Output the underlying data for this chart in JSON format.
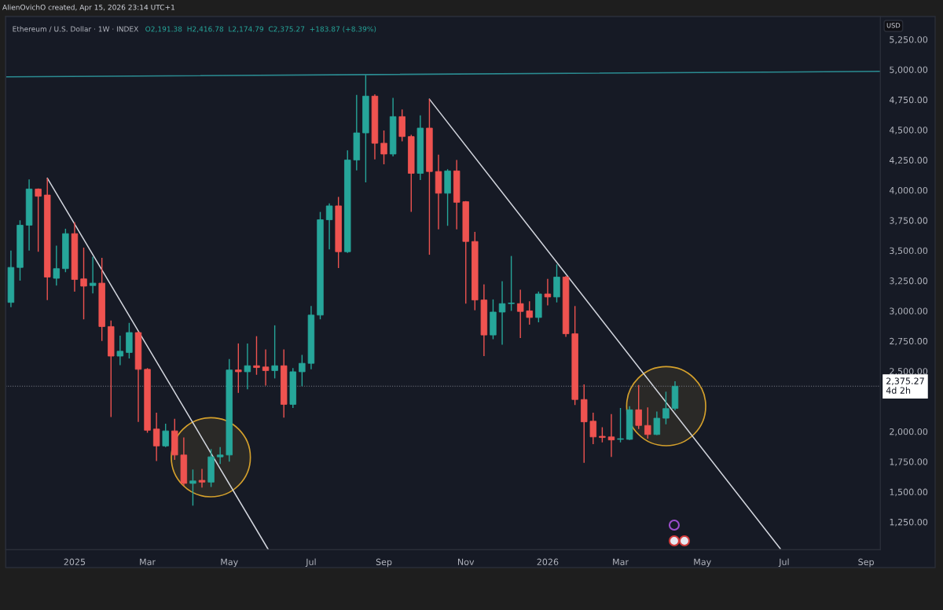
{
  "chart_data": {
    "type": "candlestick",
    "title": "Ethereum / U.S. Dollar · 1W · INDEX",
    "subtitle": "O2,191.38  H2,416.78  L2,174.79  C2,375.27  +183.87 (+8.39%)",
    "annotations": [
      "AlienOvichO created, Apr 15, 2026 23:14 UTC+1",
      "USD"
    ],
    "x": [
      "2024-11-18",
      "2024-11-25",
      "2024-12-02",
      "2024-12-09",
      "2024-12-16",
      "2024-12-23",
      "2024-12-30",
      "2025-01-06",
      "2025-01-13",
      "2025-01-20",
      "2025-01-27",
      "2025-02-03",
      "2025-02-10",
      "2025-02-17",
      "2025-02-24",
      "2025-03-03",
      "2025-03-10",
      "2025-03-17",
      "2025-03-24",
      "2025-03-31",
      "2025-04-07",
      "2025-04-14",
      "2025-04-21",
      "2025-04-28",
      "2025-05-05",
      "2025-05-12",
      "2025-05-19",
      "2025-05-26",
      "2025-06-02",
      "2025-06-09",
      "2025-06-16",
      "2025-06-23",
      "2025-06-30",
      "2025-07-07",
      "2025-07-14",
      "2025-07-21",
      "2025-07-28",
      "2025-08-04",
      "2025-08-11",
      "2025-08-18",
      "2025-08-25",
      "2025-09-01",
      "2025-09-08",
      "2025-09-15",
      "2025-09-22",
      "2025-09-29",
      "2025-10-06",
      "2025-10-13",
      "2025-10-20",
      "2025-10-27",
      "2025-11-03",
      "2025-11-10",
      "2025-11-17",
      "2025-11-24",
      "2025-12-01",
      "2025-12-08",
      "2025-12-15",
      "2025-12-22",
      "2025-12-29",
      "2026-01-05",
      "2026-01-12",
      "2026-01-19",
      "2026-01-26",
      "2026-02-02",
      "2026-02-09",
      "2026-02-16",
      "2026-02-23",
      "2026-03-02",
      "2026-03-09",
      "2026-03-16",
      "2026-03-23",
      "2026-03-30",
      "2026-04-06",
      "2026-04-13"
    ],
    "ohlc": [
      [
        3070,
        3500,
        3030,
        3360
      ],
      [
        3360,
        3750,
        3250,
        3710
      ],
      [
        3710,
        4090,
        3500,
        4010
      ],
      [
        4010,
        4015,
        3490,
        3950
      ],
      [
        3960,
        4100,
        3090,
        3280
      ],
      [
        3270,
        3540,
        3210,
        3350
      ],
      [
        3350,
        3680,
        3320,
        3640
      ],
      [
        3640,
        3735,
        3160,
        3260
      ],
      [
        3265,
        3525,
        2930,
        3205
      ],
      [
        3210,
        3450,
        3145,
        3230
      ],
      [
        3230,
        3440,
        2750,
        2870
      ],
      [
        2870,
        2920,
        2120,
        2625
      ],
      [
        2625,
        2795,
        2550,
        2665
      ],
      [
        2655,
        2900,
        2605,
        2820
      ],
      [
        2820,
        2830,
        2080,
        2515
      ],
      [
        2515,
        2525,
        1990,
        2010
      ],
      [
        2020,
        2155,
        1755,
        1880
      ],
      [
        1880,
        2065,
        1870,
        2005
      ],
      [
        2005,
        2105,
        1765,
        1805
      ],
      [
        1805,
        1950,
        1550,
        1570
      ],
      [
        1570,
        1685,
        1385,
        1590
      ],
      [
        1595,
        1690,
        1535,
        1580
      ],
      [
        1580,
        1855,
        1540,
        1790
      ],
      [
        1790,
        1870,
        1730,
        1805
      ],
      [
        1805,
        2600,
        1750,
        2510
      ],
      [
        2510,
        2730,
        2320,
        2495
      ],
      [
        2495,
        2730,
        2350,
        2545
      ],
      [
        2545,
        2790,
        2470,
        2530
      ],
      [
        2535,
        2680,
        2380,
        2505
      ],
      [
        2505,
        2880,
        2440,
        2545
      ],
      [
        2545,
        2680,
        2115,
        2225
      ],
      [
        2225,
        2525,
        2195,
        2495
      ],
      [
        2495,
        2635,
        2375,
        2565
      ],
      [
        2565,
        3040,
        2515,
        2965
      ],
      [
        2965,
        3820,
        2930,
        3755
      ],
      [
        3755,
        3890,
        3510,
        3870
      ],
      [
        3870,
        3945,
        3355,
        3490
      ],
      [
        3490,
        4330,
        3480,
        4250
      ],
      [
        4250,
        4790,
        4165,
        4475
      ],
      [
        4475,
        4955,
        4065,
        4780
      ],
      [
        4780,
        4795,
        4255,
        4390
      ],
      [
        4390,
        4495,
        4215,
        4300
      ],
      [
        4300,
        4765,
        4280,
        4610
      ],
      [
        4610,
        4670,
        4405,
        4445
      ],
      [
        4445,
        4460,
        3820,
        4140
      ],
      [
        4140,
        4620,
        4085,
        4515
      ],
      [
        4515,
        4755,
        3465,
        4155
      ],
      [
        4155,
        4295,
        3675,
        3975
      ],
      [
        3975,
        4175,
        3705,
        4160
      ],
      [
        4160,
        4250,
        3675,
        3900
      ],
      [
        3905,
        3910,
        3060,
        3575
      ],
      [
        3575,
        3655,
        3005,
        3090
      ],
      [
        3090,
        3220,
        2625,
        2800
      ],
      [
        2800,
        3095,
        2765,
        2990
      ],
      [
        2990,
        3245,
        2720,
        3060
      ],
      [
        3060,
        3455,
        3000,
        3065
      ],
      [
        3060,
        3175,
        2775,
        2995
      ],
      [
        3000,
        3080,
        2885,
        2945
      ],
      [
        2945,
        3160,
        2905,
        3140
      ],
      [
        3140,
        3265,
        3045,
        3115
      ],
      [
        3115,
        3385,
        3070,
        3280
      ],
      [
        3280,
        3290,
        2785,
        2810
      ],
      [
        2810,
        3040,
        2220,
        2265
      ],
      [
        2265,
        2390,
        1740,
        2080
      ],
      [
        2085,
        2155,
        1895,
        1955
      ],
      [
        1960,
        2035,
        1910,
        1950
      ],
      [
        1955,
        2145,
        1790,
        1930
      ],
      [
        1935,
        2195,
        1910,
        1940
      ],
      [
        1935,
        2210,
        1930,
        2180
      ],
      [
        2180,
        2385,
        2020,
        2050
      ],
      [
        2050,
        2200,
        1940,
        1975
      ],
      [
        1975,
        2165,
        1970,
        2110
      ],
      [
        2110,
        2330,
        2060,
        2190
      ],
      [
        2191.38,
        2416.78,
        2174.79,
        2375.27
      ]
    ],
    "colors": [
      "#26a69a",
      "#26a69a",
      "#26a69a",
      "#ef5350",
      "#ef5350",
      "#26a69a",
      "#26a69a",
      "#ef5350",
      "#ef5350",
      "#26a69a",
      "#ef5350",
      "#ef5350",
      "#26a69a",
      "#26a69a",
      "#ef5350",
      "#ef5350",
      "#ef5350",
      "#26a69a",
      "#ef5350",
      "#ef5350",
      "#26a69a",
      "#ef5350",
      "#26a69a",
      "#26a69a",
      "#26a69a",
      "#ef5350",
      "#26a69a",
      "#ef5350",
      "#ef5350",
      "#26a69a",
      "#ef5350",
      "#26a69a",
      "#26a69a",
      "#26a69a",
      "#26a69a",
      "#26a69a",
      "#ef5350",
      "#26a69a",
      "#26a69a",
      "#26a69a",
      "#ef5350",
      "#ef5350",
      "#26a69a",
      "#ef5350",
      "#ef5350",
      "#26a69a",
      "#ef5350",
      "#ef5350",
      "#26a69a",
      "#ef5350",
      "#ef5350",
      "#ef5350",
      "#ef5350",
      "#26a69a",
      "#26a69a",
      "#26a69a",
      "#ef5350",
      "#ef5350",
      "#26a69a",
      "#ef5350",
      "#26a69a",
      "#ef5350",
      "#ef5350",
      "#ef5350",
      "#ef5350",
      "#ef5350",
      "#ef5350",
      "#26a69a",
      "#26a69a",
      "#ef5350",
      "#ef5350",
      "#26a69a",
      "#26a69a",
      "#26a69a"
    ],
    "series": [
      {
        "type": "line",
        "x": [
          "2024-12-16",
          "2025-06-04"
        ],
        "values": [
          4100,
          1022
        ],
        "color": "#d1d4dc"
      },
      {
        "type": "line",
        "x": [
          "2025-10-06",
          "2026-07-03"
        ],
        "values": [
          4755,
          1028
        ],
        "color": "#d1d4dc"
      },
      {
        "type": "line",
        "x": [
          "2024-11-14",
          "2026-09-18"
        ],
        "values": [
          4940,
          4985
        ],
        "color": "#2b8c92"
      }
    ],
    "ref_lines": [
      {
        "axis": "y",
        "value": 2375.27,
        "label": "2,375.27\n4d 2h",
        "color": "#787b86",
        "line_style": "dotted"
      }
    ],
    "xlim": [
      "2024-11-14",
      "2026-09-18"
    ],
    "xticks": [
      {
        "value": "2025-01-06",
        "label": "2025"
      },
      {
        "value": "2025-03-03",
        "label": "Mar"
      },
      {
        "value": "2025-05-05",
        "label": "May"
      },
      {
        "value": "2025-07-07",
        "label": "Jul"
      },
      {
        "value": "2025-09-01",
        "label": "Sep"
      },
      {
        "value": "2025-11-03",
        "label": "Nov"
      },
      {
        "value": "2026-01-05",
        "label": "2026"
      },
      {
        "value": "2026-03-02",
        "label": "Mar"
      },
      {
        "value": "2026-05-04",
        "label": "May"
      },
      {
        "value": "2026-07-06",
        "label": "Jul"
      },
      {
        "value": "2026-09-07",
        "label": "Sep"
      }
    ],
    "ylim": [
      1020,
      5440
    ],
    "yticks": [
      {
        "value": 1250,
        "label": "1,250.00"
      },
      {
        "value": 1500,
        "label": "1,500.00"
      },
      {
        "value": 1750,
        "label": "1,750.00"
      },
      {
        "value": 2000,
        "label": "2,000.00"
      },
      {
        "value": 2500,
        "label": "2,500.00"
      },
      {
        "value": 2750,
        "label": "2,750.00"
      },
      {
        "value": 3000,
        "label": "3,000.00"
      },
      {
        "value": 3250,
        "label": "3,250.00"
      },
      {
        "value": 3500,
        "label": "3,500.00"
      },
      {
        "value": 3750,
        "label": "3,750.00"
      },
      {
        "value": 4000,
        "label": "4,000.00"
      },
      {
        "value": 4250,
        "label": "4,250.00"
      },
      {
        "value": 4500,
        "label": "4,500.00"
      },
      {
        "value": 4750,
        "label": "4,750.00"
      },
      {
        "value": 5000,
        "label": "5,000.00"
      },
      {
        "value": 5250,
        "label": "5,250.00"
      }
    ],
    "grid": false
  }
}
